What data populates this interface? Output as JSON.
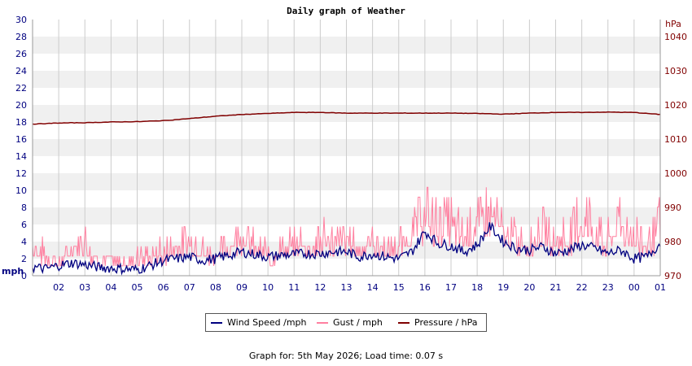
{
  "chart_data": {
    "type": "line",
    "title": "Daily graph of Weather",
    "left_axis": {
      "unit": "mph",
      "min": 0,
      "max": 30,
      "ticks": [
        "0",
        "2",
        "4",
        "6",
        "8",
        "10",
        "12",
        "14",
        "16",
        "18",
        "20",
        "22",
        "24",
        "26",
        "28",
        "30"
      ]
    },
    "right_axis": {
      "unit": "hPa",
      "min": 970,
      "max": 1045,
      "ticks": [
        "970",
        "980",
        "990",
        "1000",
        "1010",
        "1020",
        "1030",
        "1040"
      ]
    },
    "x_ticks": [
      "02",
      "03",
      "04",
      "05",
      "06",
      "07",
      "08",
      "09",
      "10",
      "11",
      "12",
      "13",
      "14",
      "15",
      "16",
      "17",
      "18",
      "19",
      "20",
      "21",
      "22",
      "23",
      "00",
      "01"
    ],
    "x_range_hours": [
      1,
      25
    ],
    "grid": true,
    "legend_placement": "bottom",
    "series": [
      {
        "name": "Wind Speed /mph",
        "axis": "left",
        "color": "#000080",
        "points_hours": [
          1.0,
          1.5,
          2.0,
          2.5,
          3.0,
          3.5,
          4.0,
          4.5,
          5.0,
          5.5,
          6.0,
          6.5,
          7.0,
          7.5,
          8.0,
          8.5,
          9.0,
          9.5,
          10.0,
          10.5,
          11.0,
          11.5,
          12.0,
          12.5,
          13.0,
          13.5,
          14.0,
          14.5,
          15.0,
          15.5,
          16.0,
          16.5,
          17.0,
          17.5,
          18.0,
          18.5,
          19.0,
          19.5,
          20.0,
          20.5,
          21.0,
          21.5,
          22.0,
          22.5,
          23.0,
          23.5,
          24.0,
          24.5,
          25.0
        ],
        "values": [
          1.0,
          0.8,
          1.2,
          1.5,
          1.3,
          1.0,
          0.9,
          0.8,
          0.7,
          1.2,
          1.8,
          2.0,
          2.2,
          1.8,
          2.0,
          2.4,
          2.8,
          2.5,
          2.2,
          2.4,
          2.5,
          2.6,
          2.6,
          2.8,
          2.8,
          2.2,
          2.6,
          2.2,
          2.0,
          2.8,
          5.2,
          3.8,
          3.5,
          2.8,
          3.6,
          5.8,
          4.0,
          3.2,
          3.0,
          3.4,
          2.6,
          3.0,
          3.6,
          3.2,
          2.6,
          3.0,
          2.0,
          2.2,
          3.8
        ]
      },
      {
        "name": "Gust / mph",
        "axis": "left",
        "color": "#ff80a0",
        "points_hours": [
          1.0,
          1.5,
          2.0,
          2.5,
          3.0,
          3.5,
          4.0,
          4.5,
          5.0,
          5.5,
          6.0,
          6.5,
          7.0,
          7.5,
          8.0,
          8.5,
          9.0,
          9.5,
          10.0,
          10.5,
          11.0,
          11.5,
          12.0,
          12.5,
          13.0,
          13.5,
          14.0,
          14.5,
          15.0,
          15.5,
          16.0,
          16.5,
          17.0,
          17.5,
          18.0,
          18.5,
          19.0,
          19.5,
          20.0,
          20.5,
          21.0,
          21.5,
          22.0,
          22.5,
          23.0,
          23.5,
          24.0,
          24.5,
          25.0
        ],
        "values": [
          6.0,
          3.5,
          2.5,
          5.0,
          6.5,
          3.0,
          3.0,
          2.0,
          3.5,
          3.5,
          4.5,
          5.0,
          7.0,
          4.5,
          4.0,
          5.5,
          8.0,
          5.0,
          4.0,
          5.0,
          6.0,
          5.5,
          7.0,
          6.5,
          7.0,
          5.0,
          6.0,
          5.0,
          5.0,
          8.0,
          11.5,
          9.0,
          10.0,
          7.0,
          10.0,
          12.5,
          8.0,
          7.0,
          6.0,
          8.0,
          6.5,
          7.0,
          11.5,
          8.0,
          6.5,
          10.0,
          7.0,
          6.5,
          9.0
        ]
      },
      {
        "name": "Pressure / hPa",
        "axis": "right",
        "color": "#800000",
        "points_hours": [
          1,
          2,
          3,
          4,
          5,
          6,
          7,
          8,
          9,
          10,
          11,
          12,
          13,
          14,
          15,
          16,
          17,
          18,
          19,
          20,
          21,
          22,
          23,
          24,
          25
        ],
        "values": [
          1014.4,
          1014.7,
          1014.8,
          1015.0,
          1015.1,
          1015.4,
          1016.0,
          1016.7,
          1017.2,
          1017.5,
          1017.8,
          1017.8,
          1017.6,
          1017.6,
          1017.6,
          1017.6,
          1017.6,
          1017.5,
          1017.3,
          1017.6,
          1017.8,
          1017.8,
          1017.9,
          1017.8,
          1017.2
        ]
      }
    ]
  },
  "legend": {
    "wind_label": "Wind Speed /mph",
    "gust_label": "Gust / mph",
    "pressure_label": "Pressure / hPa"
  },
  "footer": "Graph for: 5th May 2026; Load time: 0.07 s",
  "colors": {
    "wind": "#000080",
    "gust": "#ff80a0",
    "pressure": "#800000",
    "band": "#f0f0f0",
    "grid": "#cccccc"
  }
}
